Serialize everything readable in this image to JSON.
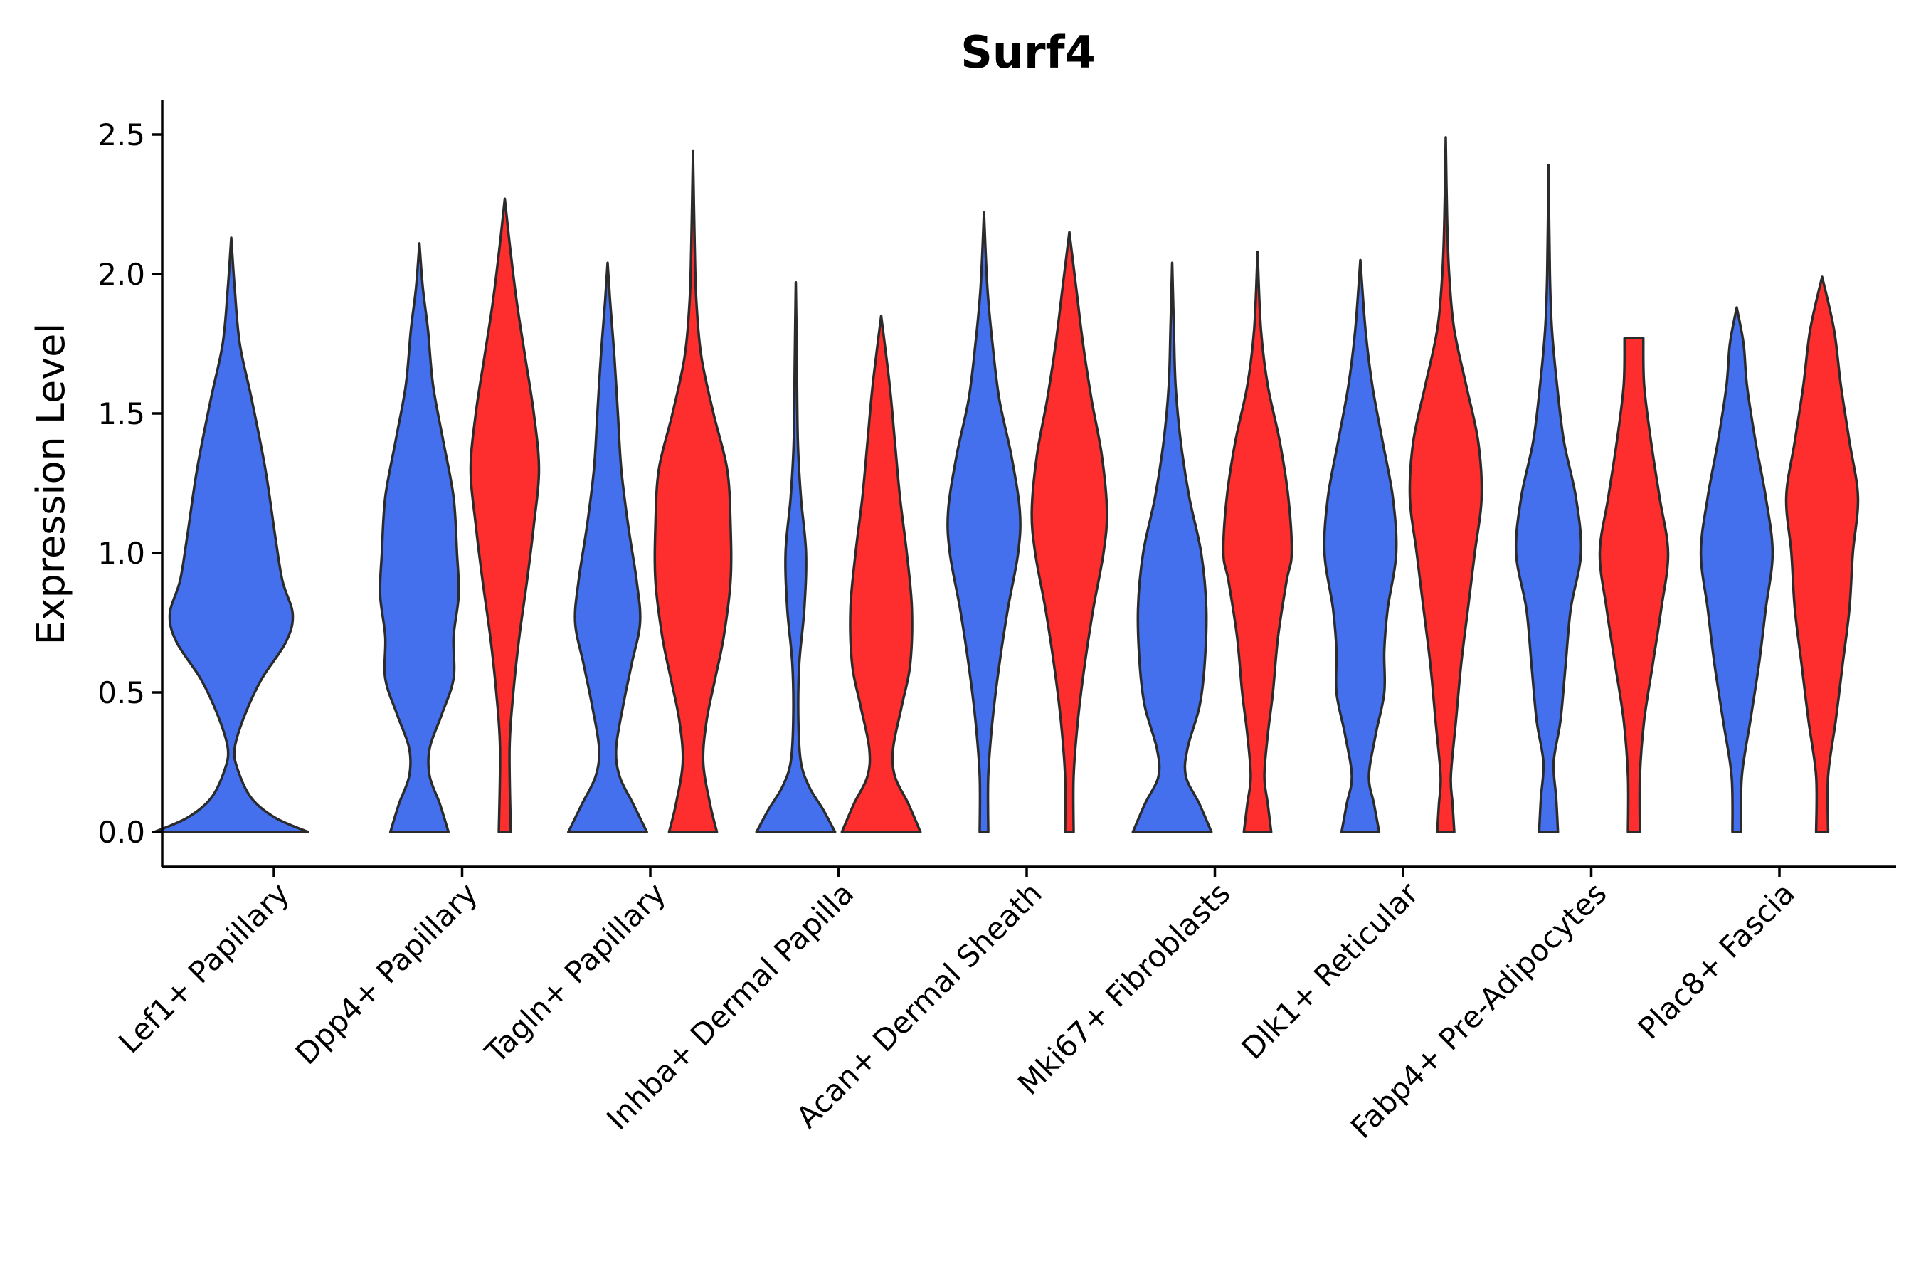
{
  "chart_data": {
    "type": "violin",
    "title": "Surf4",
    "xlabel": "",
    "ylabel": "Expression Level",
    "ylim": [
      -0.12,
      2.62
    ],
    "yticks": [
      "0.0",
      "0.5",
      "1.0",
      "1.5",
      "2.0",
      "2.5"
    ],
    "categories": [
      "Lef1+ Papillary",
      "Dpp4+ Papillary",
      "Tagln+ Papillary",
      "Inhba+ Dermal Papilla",
      "Acan+ Dermal Sheath",
      "Mki67+ Fibroblasts",
      "Dlk1+ Reticular",
      "Fabp4+ Pre-Adipocytes",
      "Plac8+ Fascia"
    ],
    "colors": {
      "group_a": "#4470EE",
      "group_b": "#FF2E2E"
    },
    "violins": [
      {
        "category": 0,
        "group": "a",
        "max": 2.13,
        "profile": [
          [
            0,
            0.45
          ],
          [
            0.05,
            0.26
          ],
          [
            0.12,
            0.12
          ],
          [
            0.22,
            0.04
          ],
          [
            0.3,
            0.02
          ],
          [
            0.42,
            0.08
          ],
          [
            0.55,
            0.18
          ],
          [
            0.68,
            0.32
          ],
          [
            0.78,
            0.36
          ],
          [
            0.9,
            0.3
          ],
          [
            1.05,
            0.26
          ],
          [
            1.3,
            0.2
          ],
          [
            1.55,
            0.12
          ],
          [
            1.75,
            0.05
          ],
          [
            1.95,
            0.02
          ],
          [
            2.13,
            0
          ]
        ]
      },
      {
        "category": 1,
        "group": "a",
        "max": 2.11,
        "profile": [
          [
            0,
            0.17
          ],
          [
            0.1,
            0.12
          ],
          [
            0.2,
            0.06
          ],
          [
            0.3,
            0.06
          ],
          [
            0.42,
            0.13
          ],
          [
            0.55,
            0.2
          ],
          [
            0.7,
            0.2
          ],
          [
            0.85,
            0.23
          ],
          [
            1.0,
            0.22
          ],
          [
            1.2,
            0.2
          ],
          [
            1.4,
            0.14
          ],
          [
            1.6,
            0.08
          ],
          [
            1.8,
            0.05
          ],
          [
            1.95,
            0.02
          ],
          [
            2.11,
            0
          ]
        ]
      },
      {
        "category": 1,
        "group": "b",
        "max": 2.27,
        "profile": [
          [
            0,
            0.035
          ],
          [
            0.3,
            0.028
          ],
          [
            0.5,
            0.05
          ],
          [
            0.7,
            0.085
          ],
          [
            0.9,
            0.13
          ],
          [
            1.1,
            0.17
          ],
          [
            1.3,
            0.2
          ],
          [
            1.5,
            0.17
          ],
          [
            1.7,
            0.12
          ],
          [
            1.9,
            0.07
          ],
          [
            2.1,
            0.03
          ],
          [
            2.27,
            0
          ]
        ]
      },
      {
        "category": 2,
        "group": "a",
        "max": 2.04,
        "profile": [
          [
            0,
            0.23
          ],
          [
            0.1,
            0.15
          ],
          [
            0.2,
            0.07
          ],
          [
            0.3,
            0.05
          ],
          [
            0.45,
            0.09
          ],
          [
            0.6,
            0.14
          ],
          [
            0.75,
            0.19
          ],
          [
            0.9,
            0.17
          ],
          [
            1.1,
            0.12
          ],
          [
            1.3,
            0.08
          ],
          [
            1.5,
            0.06
          ],
          [
            1.7,
            0.04
          ],
          [
            1.9,
            0.015
          ],
          [
            2.04,
            0
          ]
        ]
      },
      {
        "category": 2,
        "group": "b",
        "max": 2.44,
        "profile": [
          [
            0,
            0.14
          ],
          [
            0.1,
            0.1
          ],
          [
            0.25,
            0.06
          ],
          [
            0.4,
            0.08
          ],
          [
            0.55,
            0.13
          ],
          [
            0.7,
            0.18
          ],
          [
            0.9,
            0.22
          ],
          [
            1.1,
            0.22
          ],
          [
            1.3,
            0.2
          ],
          [
            1.5,
            0.12
          ],
          [
            1.7,
            0.05
          ],
          [
            1.9,
            0.02
          ],
          [
            2.1,
            0.01
          ],
          [
            2.44,
            0
          ]
        ]
      },
      {
        "category": 3,
        "group": "a",
        "max": 1.97,
        "profile": [
          [
            0,
            0.23
          ],
          [
            0.08,
            0.16
          ],
          [
            0.16,
            0.08
          ],
          [
            0.25,
            0.03
          ],
          [
            0.4,
            0.015
          ],
          [
            0.6,
            0.02
          ],
          [
            0.8,
            0.05
          ],
          [
            1.0,
            0.06
          ],
          [
            1.2,
            0.03
          ],
          [
            1.4,
            0.012
          ],
          [
            1.7,
            0.006
          ],
          [
            1.97,
            0
          ]
        ]
      },
      {
        "category": 3,
        "group": "b",
        "max": 1.85,
        "profile": [
          [
            0,
            0.23
          ],
          [
            0.1,
            0.16
          ],
          [
            0.2,
            0.08
          ],
          [
            0.3,
            0.07
          ],
          [
            0.45,
            0.12
          ],
          [
            0.6,
            0.17
          ],
          [
            0.8,
            0.18
          ],
          [
            1.0,
            0.15
          ],
          [
            1.2,
            0.11
          ],
          [
            1.4,
            0.08
          ],
          [
            1.6,
            0.05
          ],
          [
            1.85,
            0
          ]
        ]
      },
      {
        "category": 4,
        "group": "a",
        "max": 2.22,
        "profile": [
          [
            0,
            0.025
          ],
          [
            0.2,
            0.025
          ],
          [
            0.4,
            0.05
          ],
          [
            0.6,
            0.09
          ],
          [
            0.8,
            0.14
          ],
          [
            1.0,
            0.2
          ],
          [
            1.15,
            0.21
          ],
          [
            1.35,
            0.16
          ],
          [
            1.55,
            0.09
          ],
          [
            1.75,
            0.05
          ],
          [
            1.95,
            0.02
          ],
          [
            2.22,
            0
          ]
        ]
      },
      {
        "category": 4,
        "group": "b",
        "max": 2.15,
        "profile": [
          [
            0,
            0.025
          ],
          [
            0.2,
            0.025
          ],
          [
            0.4,
            0.05
          ],
          [
            0.6,
            0.09
          ],
          [
            0.8,
            0.14
          ],
          [
            1.0,
            0.2
          ],
          [
            1.15,
            0.22
          ],
          [
            1.35,
            0.19
          ],
          [
            1.55,
            0.13
          ],
          [
            1.75,
            0.08
          ],
          [
            1.95,
            0.04
          ],
          [
            2.15,
            0
          ]
        ]
      },
      {
        "category": 5,
        "group": "a",
        "max": 2.04,
        "profile": [
          [
            0,
            0.23
          ],
          [
            0.1,
            0.16
          ],
          [
            0.2,
            0.08
          ],
          [
            0.3,
            0.09
          ],
          [
            0.45,
            0.16
          ],
          [
            0.6,
            0.19
          ],
          [
            0.8,
            0.2
          ],
          [
            1.0,
            0.17
          ],
          [
            1.2,
            0.1
          ],
          [
            1.4,
            0.05
          ],
          [
            1.6,
            0.02
          ],
          [
            1.8,
            0.01
          ],
          [
            2.04,
            0
          ]
        ]
      },
      {
        "category": 5,
        "group": "b",
        "max": 2.08,
        "profile": [
          [
            0,
            0.08
          ],
          [
            0.1,
            0.06
          ],
          [
            0.2,
            0.04
          ],
          [
            0.35,
            0.06
          ],
          [
            0.5,
            0.09
          ],
          [
            0.7,
            0.12
          ],
          [
            0.9,
            0.17
          ],
          [
            1.0,
            0.2
          ],
          [
            1.2,
            0.18
          ],
          [
            1.4,
            0.13
          ],
          [
            1.6,
            0.06
          ],
          [
            1.8,
            0.02
          ],
          [
            2.08,
            0
          ]
        ]
      },
      {
        "category": 6,
        "group": "a",
        "max": 2.05,
        "profile": [
          [
            0,
            0.11
          ],
          [
            0.1,
            0.08
          ],
          [
            0.2,
            0.05
          ],
          [
            0.35,
            0.09
          ],
          [
            0.5,
            0.14
          ],
          [
            0.65,
            0.14
          ],
          [
            0.8,
            0.16
          ],
          [
            1.0,
            0.21
          ],
          [
            1.2,
            0.19
          ],
          [
            1.4,
            0.13
          ],
          [
            1.6,
            0.07
          ],
          [
            1.8,
            0.03
          ],
          [
            2.05,
            0
          ]
        ]
      },
      {
        "category": 6,
        "group": "b",
        "max": 2.49,
        "profile": [
          [
            0,
            0.05
          ],
          [
            0.1,
            0.04
          ],
          [
            0.2,
            0.03
          ],
          [
            0.4,
            0.06
          ],
          [
            0.6,
            0.09
          ],
          [
            0.8,
            0.13
          ],
          [
            1.0,
            0.17
          ],
          [
            1.2,
            0.21
          ],
          [
            1.4,
            0.19
          ],
          [
            1.6,
            0.12
          ],
          [
            1.8,
            0.05
          ],
          [
            2.0,
            0.02
          ],
          [
            2.2,
            0.008
          ],
          [
            2.49,
            0
          ]
        ]
      },
      {
        "category": 7,
        "group": "a",
        "max": 2.39,
        "profile": [
          [
            0,
            0.055
          ],
          [
            0.12,
            0.045
          ],
          [
            0.25,
            0.03
          ],
          [
            0.4,
            0.07
          ],
          [
            0.6,
            0.1
          ],
          [
            0.8,
            0.13
          ],
          [
            1.0,
            0.19
          ],
          [
            1.2,
            0.16
          ],
          [
            1.4,
            0.09
          ],
          [
            1.6,
            0.05
          ],
          [
            1.8,
            0.02
          ],
          [
            2.0,
            0.008
          ],
          [
            2.39,
            0
          ]
        ]
      },
      {
        "category": 7,
        "group": "b",
        "max": 1.77,
        "profile": [
          [
            0,
            0.035
          ],
          [
            0.2,
            0.035
          ],
          [
            0.4,
            0.06
          ],
          [
            0.6,
            0.11
          ],
          [
            0.8,
            0.16
          ],
          [
            1.0,
            0.2
          ],
          [
            1.2,
            0.15
          ],
          [
            1.4,
            0.1
          ],
          [
            1.6,
            0.06
          ],
          [
            1.77,
            0.055
          ]
        ]
      },
      {
        "category": 8,
        "group": "a",
        "max": 1.88,
        "profile": [
          [
            0,
            0.025
          ],
          [
            0.2,
            0.03
          ],
          [
            0.4,
            0.08
          ],
          [
            0.6,
            0.13
          ],
          [
            0.8,
            0.17
          ],
          [
            1.0,
            0.21
          ],
          [
            1.2,
            0.17
          ],
          [
            1.4,
            0.11
          ],
          [
            1.6,
            0.06
          ],
          [
            1.75,
            0.04
          ],
          [
            1.88,
            0
          ]
        ]
      },
      {
        "category": 8,
        "group": "b",
        "max": 1.99,
        "profile": [
          [
            0,
            0.035
          ],
          [
            0.2,
            0.035
          ],
          [
            0.4,
            0.08
          ],
          [
            0.6,
            0.12
          ],
          [
            0.8,
            0.16
          ],
          [
            1.0,
            0.18
          ],
          [
            1.2,
            0.21
          ],
          [
            1.4,
            0.16
          ],
          [
            1.6,
            0.11
          ],
          [
            1.8,
            0.07
          ],
          [
            1.99,
            0
          ]
        ]
      }
    ]
  }
}
